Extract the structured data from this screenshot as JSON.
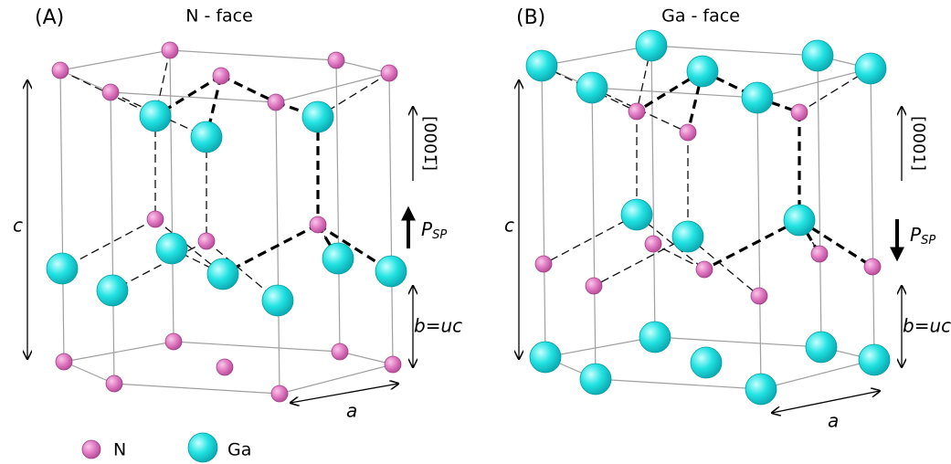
{
  "panels": [
    {
      "label": "(A)",
      "title": "N - face",
      "c_label": "c",
      "direction": "[0001̅]",
      "polarization": {
        "symbol": "P",
        "subscript": "SP"
      },
      "b_label": "b=uc",
      "a_label": "a"
    },
    {
      "label": "(B)",
      "title": "Ga - face",
      "c_label": "c",
      "direction": "[0001]",
      "polarization": {
        "symbol": "P",
        "subscript": "SP"
      },
      "b_label": "b=uc",
      "a_label": "a"
    }
  ],
  "legend": [
    {
      "label": "N"
    },
    {
      "label": "Ga"
    }
  ]
}
